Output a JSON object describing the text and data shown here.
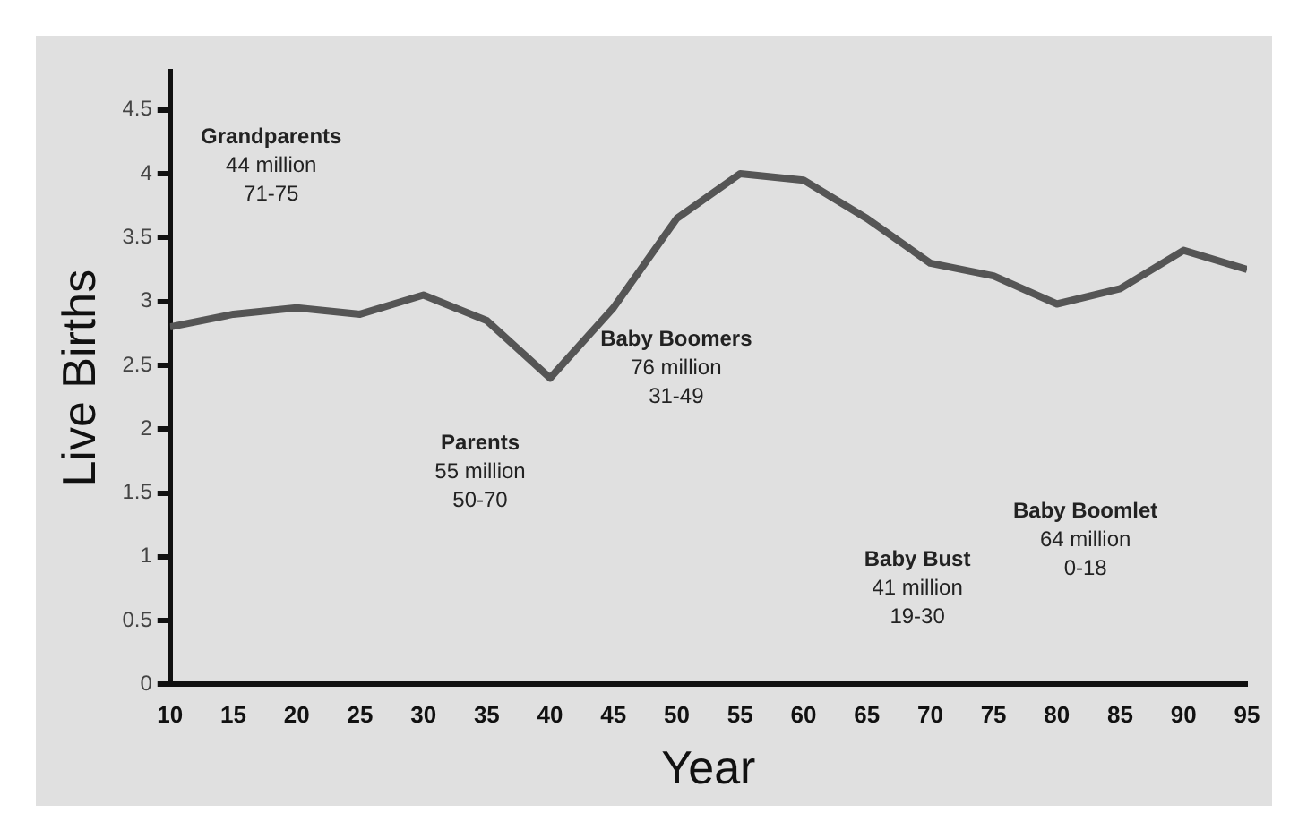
{
  "chart_data": {
    "type": "line",
    "xlabel": "Year",
    "ylabel": "Live Births",
    "x": [
      10,
      15,
      20,
      25,
      30,
      35,
      40,
      45,
      50,
      55,
      60,
      65,
      70,
      75,
      80,
      85,
      90,
      95
    ],
    "series": [
      {
        "color": "#555555",
        "values": [
          2.8,
          2.9,
          2.95,
          2.9,
          3.05,
          2.85,
          2.4,
          2.95,
          3.65,
          4.0,
          3.95,
          3.65,
          3.3,
          3.2,
          2.98,
          3.1,
          3.4,
          3.25
        ]
      }
    ],
    "xlim": [
      10,
      95
    ],
    "xticks": [
      10,
      15,
      20,
      25,
      30,
      35,
      40,
      45,
      50,
      55,
      60,
      65,
      70,
      75,
      80,
      85,
      90,
      95
    ],
    "ylim": [
      0,
      4.8
    ],
    "yticks": [
      0,
      0.5,
      1,
      1.5,
      2,
      2.5,
      3,
      3.5,
      4,
      4.5
    ],
    "annotations": [
      "Grandparents\n44 million\n71-75",
      "Parents\n55 million\n50-70",
      "Baby Boomers\n76 million\n31-49",
      "Baby Bust\n41 million\n19-30",
      "Baby Boomlet\n64 million\n0-18"
    ],
    "grid": false,
    "legend": false,
    "marker": "none",
    "line_style": "solid"
  }
}
